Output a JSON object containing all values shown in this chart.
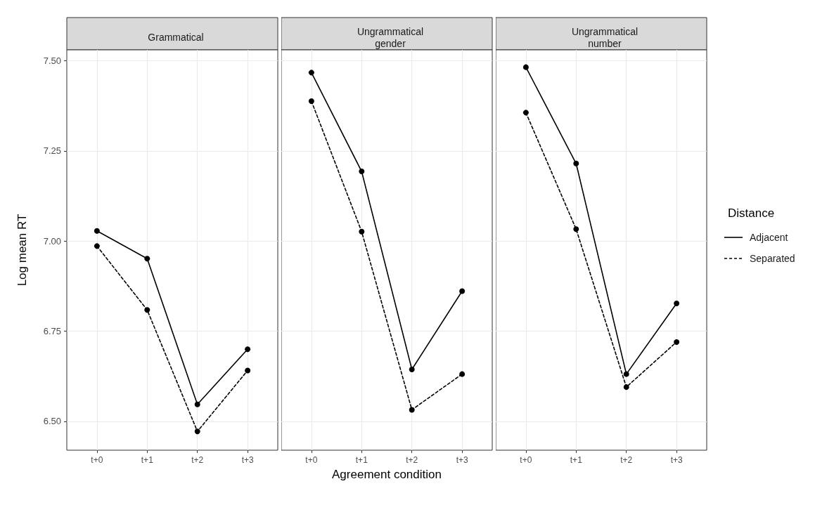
{
  "chart_data": [
    {
      "type": "line",
      "title": "Grammatical",
      "ylabel": "Log mean RT",
      "categories": [
        "t+0",
        "t+1",
        "t+2",
        "t+3"
      ],
      "ylim": [
        6.42,
        7.53
      ],
      "yticks": [
        {
          "value": 6.5,
          "label": "6.50"
        },
        {
          "value": 6.75,
          "label": "6.75"
        },
        {
          "value": 7,
          "label": "7.00"
        },
        {
          "value": 7.25,
          "label": "7.25"
        },
        {
          "value": 7.5,
          "label": "7.50"
        }
      ],
      "grid": true,
      "marker": "circle",
      "legend": false,
      "series": [
        {
          "color": "#000000",
          "line_style": "solid",
          "values": [
            7.028,
            6.951,
            6.547,
            6.7
          ]
        },
        {
          "color": "#000000",
          "line_style": "dashed",
          "values": [
            6.986,
            6.809,
            6.472,
            6.641
          ]
        }
      ]
    },
    {
      "type": "line",
      "title": "Ungrammatical\ngender",
      "xlabel": "Agreement condition",
      "categories": [
        "t+0",
        "t+1",
        "t+2",
        "t+3"
      ],
      "ylim": [
        6.42,
        7.53
      ],
      "yticks": [
        6.5,
        6.75,
        7,
        7.25,
        7.5
      ],
      "tick_labels": "x",
      "grid": true,
      "marker": "circle",
      "legend": false,
      "series": [
        {
          "color": "#000000",
          "line_style": "solid",
          "values": [
            7.467,
            7.193,
            6.644,
            6.861
          ]
        },
        {
          "color": "#000000",
          "line_style": "dashed",
          "values": [
            7.388,
            7.026,
            6.532,
            6.631
          ]
        }
      ]
    },
    {
      "type": "line",
      "title": "Ungrammatical\nnumber",
      "legend_title": "Distance",
      "categories": [
        "t+0",
        "t+1",
        "t+2",
        "t+3"
      ],
      "ylim": [
        6.42,
        7.53
      ],
      "yticks": [
        6.5,
        6.75,
        7,
        7.25,
        7.5
      ],
      "tick_labels": "x",
      "grid": true,
      "marker": "circle",
      "legend": "right",
      "series": [
        {
          "name": "Adjacent",
          "color": "#000000",
          "line_style": "solid",
          "values": [
            7.482,
            7.215,
            6.631,
            6.827
          ]
        },
        {
          "name": "Separated",
          "color": "#000000",
          "line_style": "dashed",
          "values": [
            7.356,
            7.033,
            6.595,
            6.72
          ]
        }
      ]
    }
  ]
}
